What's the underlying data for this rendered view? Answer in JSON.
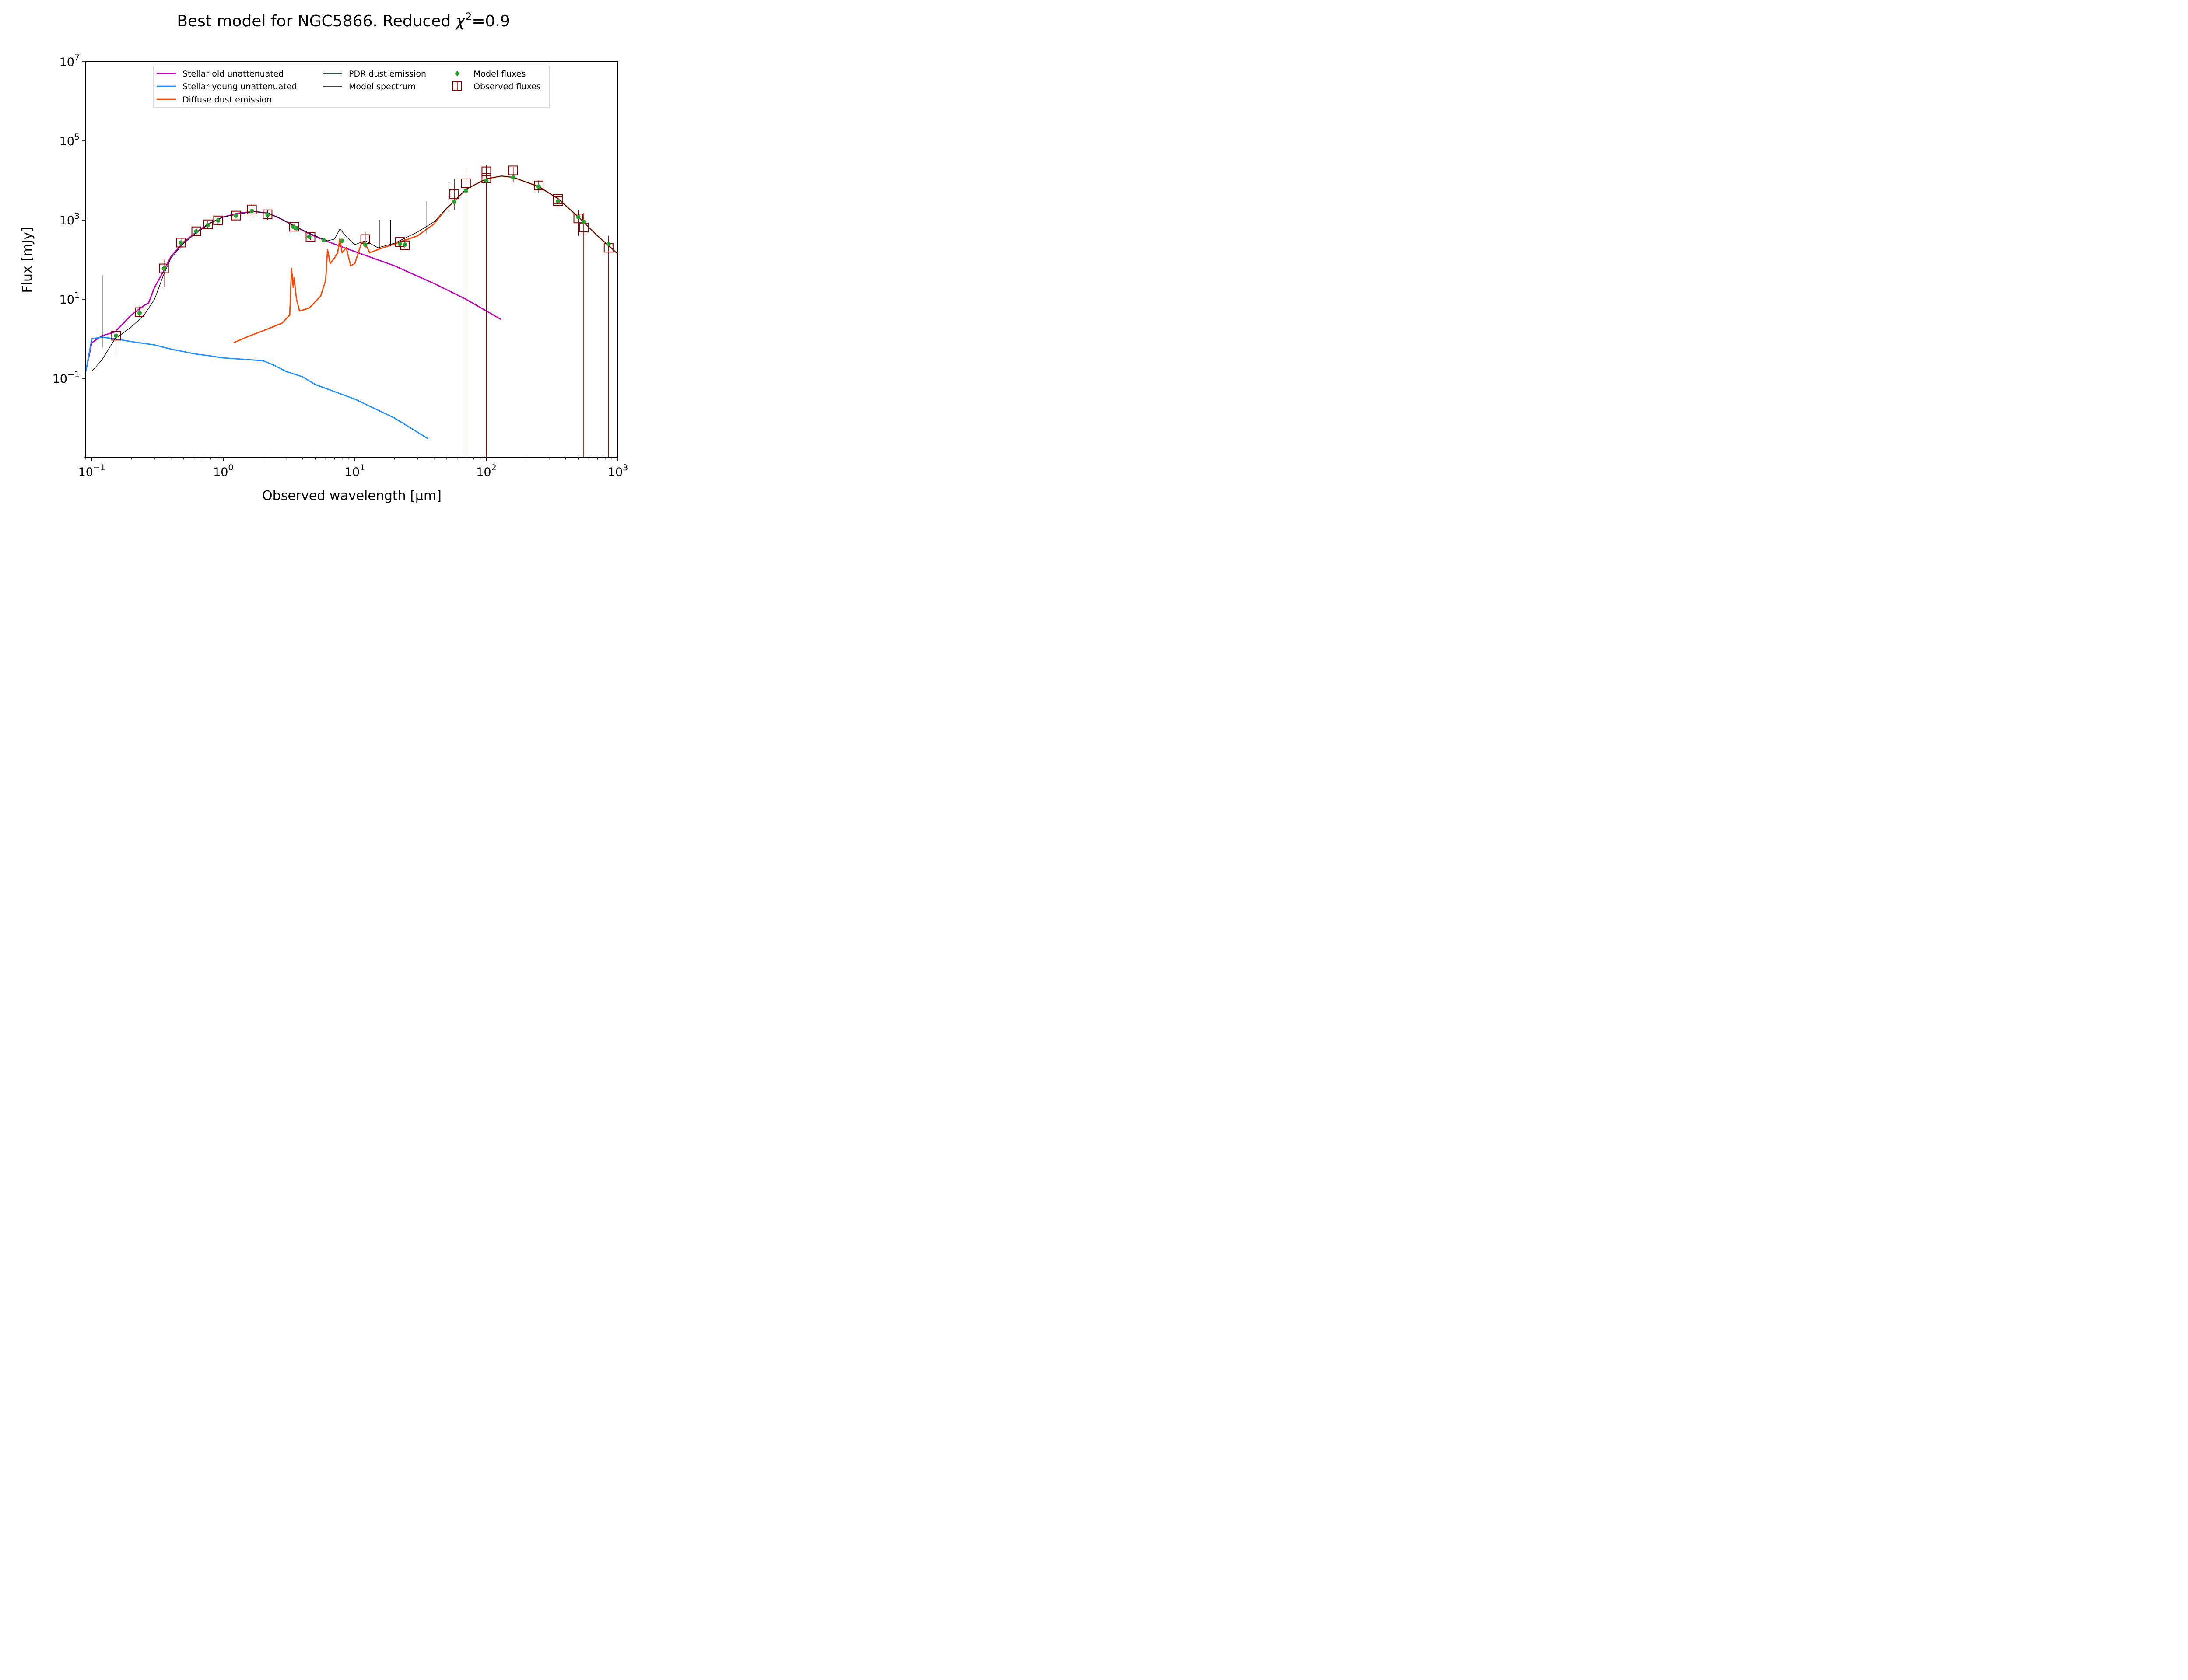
{
  "chart_data": {
    "type": "line",
    "title": "Best model for NGC5866. Reduced χ²=0.9",
    "title_parts": {
      "prefix": "Best model for NGC5866. Reduced ",
      "symbol": "χ",
      "sup": "2",
      "suffix": "=0.9"
    },
    "xlabel": "Observed wavelength [μm]",
    "ylabel": "Flux [mJy]",
    "xscale": "log",
    "yscale": "log",
    "xlim": [
      0.09,
      1000
    ],
    "ylim": [
      0.001,
      10000000
    ],
    "x_ticks": [
      {
        "value": 0.1,
        "base": "10",
        "exp": "−1"
      },
      {
        "value": 1,
        "base": "10",
        "exp": "0"
      },
      {
        "value": 10,
        "base": "10",
        "exp": "1"
      },
      {
        "value": 100,
        "base": "10",
        "exp": "2"
      },
      {
        "value": 1000,
        "base": "10",
        "exp": "3"
      }
    ],
    "y_ticks": [
      {
        "value": 0.1,
        "base": "10",
        "exp": "−1"
      },
      {
        "value": 10,
        "base": "10",
        "exp": "1"
      },
      {
        "value": 1000,
        "base": "10",
        "exp": "3"
      },
      {
        "value": 100000,
        "base": "10",
        "exp": "5"
      },
      {
        "value": 10000000,
        "base": "10",
        "exp": "7"
      }
    ],
    "legend_position": "upper-center",
    "legend": [
      {
        "label": "Stellar old unattenuated",
        "color": "#bf00bf",
        "kind": "line"
      },
      {
        "label": "Stellar young unattenuated",
        "color": "#1e90ff",
        "kind": "line"
      },
      {
        "label": "Diffuse dust emission",
        "color": "#ff4500",
        "kind": "line"
      },
      {
        "label": "PDR dust emission",
        "color": "#2f4f4f",
        "kind": "line"
      },
      {
        "label": "Model spectrum",
        "color": "#000000",
        "kind": "thin-line"
      },
      {
        "label": "Model fluxes",
        "color": "#2ca02c",
        "kind": "dot"
      },
      {
        "label": "Observed fluxes",
        "color": "#800000",
        "kind": "square"
      }
    ],
    "series": [
      {
        "name": "Stellar old unattenuated",
        "color": "#bf00bf",
        "points": [
          [
            0.09,
            0.15
          ],
          [
            0.1,
            0.8
          ],
          [
            0.12,
            1.2
          ],
          [
            0.15,
            1.5
          ],
          [
            0.2,
            4
          ],
          [
            0.25,
            7
          ],
          [
            0.27,
            8
          ],
          [
            0.3,
            20
          ],
          [
            0.35,
            50
          ],
          [
            0.4,
            120
          ],
          [
            0.5,
            280
          ],
          [
            0.6,
            450
          ],
          [
            0.7,
            650
          ],
          [
            0.8,
            850
          ],
          [
            1,
            1200
          ],
          [
            1.3,
            1500
          ],
          [
            1.7,
            1650
          ],
          [
            2.2,
            1500
          ],
          [
            2.7,
            1100
          ],
          [
            3.5,
            700
          ],
          [
            4.5,
            450
          ],
          [
            6,
            300
          ],
          [
            8,
            210
          ],
          [
            10,
            160
          ],
          [
            20,
            70
          ],
          [
            40,
            25
          ],
          [
            70,
            10
          ],
          [
            129,
            3.1
          ]
        ]
      },
      {
        "name": "Stellar young unattenuated",
        "color": "#1e90ff",
        "points": [
          [
            0.09,
            0.15
          ],
          [
            0.1,
            1.0
          ],
          [
            0.12,
            1.1
          ],
          [
            0.15,
            1.0
          ],
          [
            0.2,
            0.85
          ],
          [
            0.3,
            0.7
          ],
          [
            0.4,
            0.55
          ],
          [
            0.6,
            0.42
          ],
          [
            0.8,
            0.37
          ],
          [
            1,
            0.33
          ],
          [
            1.5,
            0.3
          ],
          [
            2,
            0.28
          ],
          [
            2.4,
            0.22
          ],
          [
            3,
            0.15
          ],
          [
            4,
            0.11
          ],
          [
            5,
            0.07
          ],
          [
            10,
            0.03
          ],
          [
            20,
            0.01
          ],
          [
            36,
            0.003
          ]
        ]
      },
      {
        "name": "Diffuse dust emission",
        "color": "#ff4500",
        "points": [
          [
            1.2,
            0.8
          ],
          [
            1.6,
            1.2
          ],
          [
            2.2,
            1.8
          ],
          [
            2.8,
            2.5
          ],
          [
            3.2,
            4
          ],
          [
            3.3,
            60
          ],
          [
            3.4,
            20
          ],
          [
            3.45,
            35
          ],
          [
            3.6,
            10
          ],
          [
            3.8,
            5
          ],
          [
            4.5,
            6
          ],
          [
            5.5,
            12
          ],
          [
            6.0,
            30
          ],
          [
            6.2,
            180
          ],
          [
            6.5,
            80
          ],
          [
            7.0,
            110
          ],
          [
            7.4,
            150
          ],
          [
            7.7,
            350
          ],
          [
            8.0,
            150
          ],
          [
            8.6,
            200
          ],
          [
            9.3,
            70
          ],
          [
            10,
            80
          ],
          [
            11.3,
            280
          ],
          [
            12,
            250
          ],
          [
            13,
            150
          ],
          [
            15,
            180
          ],
          [
            20,
            250
          ],
          [
            30,
            400
          ],
          [
            40,
            800
          ],
          [
            50,
            2000
          ],
          [
            60,
            3500
          ],
          [
            70,
            6000
          ],
          [
            100,
            11000
          ],
          [
            130,
            13000
          ],
          [
            160,
            12000
          ],
          [
            250,
            7000
          ],
          [
            350,
            3500
          ],
          [
            500,
            1200
          ],
          [
            700,
            400
          ],
          [
            1000,
            140
          ]
        ]
      },
      {
        "name": "Model spectrum",
        "color": "#000000",
        "points": [
          [
            0.1,
            0.15
          ],
          [
            0.12,
            0.3
          ],
          [
            0.15,
            1.0
          ],
          [
            0.2,
            2
          ],
          [
            0.25,
            4
          ],
          [
            0.3,
            10
          ],
          [
            0.35,
            40
          ],
          [
            0.4,
            110
          ],
          [
            0.5,
            260
          ],
          [
            0.6,
            430
          ],
          [
            0.8,
            850
          ],
          [
            1,
            1200
          ],
          [
            1.7,
            1650
          ],
          [
            2.2,
            1500
          ],
          [
            2.7,
            1100
          ],
          [
            3.5,
            700
          ],
          [
            4.5,
            470
          ],
          [
            5.5,
            350
          ],
          [
            6.2,
            300
          ],
          [
            7.0,
            330
          ],
          [
            7.7,
            600
          ],
          [
            8.6,
            380
          ],
          [
            10,
            240
          ],
          [
            12,
            300
          ],
          [
            15,
            200
          ],
          [
            20,
            260
          ],
          [
            30,
            500
          ],
          [
            40,
            900
          ],
          [
            50,
            2000
          ],
          [
            70,
            6000
          ],
          [
            100,
            11000
          ],
          [
            130,
            13000
          ],
          [
            160,
            12000
          ],
          [
            250,
            7000
          ],
          [
            350,
            3500
          ],
          [
            500,
            1200
          ],
          [
            700,
            400
          ],
          [
            1000,
            140
          ]
        ]
      }
    ],
    "model_fluxes": {
      "name": "Model fluxes",
      "color": "#2ca02c",
      "points": [
        [
          0.153,
          1.2
        ],
        [
          0.231,
          4.5
        ],
        [
          0.354,
          60
        ],
        [
          0.477,
          270
        ],
        [
          0.623,
          520
        ],
        [
          0.763,
          750
        ],
        [
          0.913,
          980
        ],
        [
          1.25,
          1300
        ],
        [
          1.65,
          1700
        ],
        [
          2.17,
          1350
        ],
        [
          3.4,
          680
        ],
        [
          3.6,
          620
        ],
        [
          4.5,
          380
        ],
        [
          5.8,
          310
        ],
        [
          8.0,
          300
        ],
        [
          12,
          240
        ],
        [
          22,
          250
        ],
        [
          24,
          240
        ],
        [
          57,
          2900
        ],
        [
          70,
          5500
        ],
        [
          100,
          10000
        ],
        [
          160,
          12000
        ],
        [
          250,
          7000
        ],
        [
          350,
          3000
        ],
        [
          500,
          1200
        ],
        [
          550,
          900
        ],
        [
          850,
          250
        ]
      ]
    },
    "observed_fluxes": {
      "name": "Observed fluxes",
      "color": "#800000",
      "points": [
        {
          "x": 0.153,
          "y": 1.2,
          "yerr": [
            0.4,
            2.5
          ]
        },
        {
          "x": 0.231,
          "y": 4.7,
          "yerr": [
            3.5,
            6.5
          ]
        },
        {
          "x": 0.354,
          "y": 60,
          "yerr": [
            20,
            100
          ]
        },
        {
          "x": 0.477,
          "y": 270,
          "yerr": [
            200,
            330
          ]
        },
        {
          "x": 0.623,
          "y": 520,
          "yerr": [
            400,
            650
          ]
        },
        {
          "x": 0.763,
          "y": 780,
          "yerr": [
            600,
            950
          ]
        },
        {
          "x": 0.913,
          "y": 980,
          "yerr": [
            800,
            1200
          ]
        },
        {
          "x": 1.25,
          "y": 1300,
          "yerr": [
            1050,
            1550
          ]
        },
        {
          "x": 1.65,
          "y": 1850,
          "yerr": [
            1100,
            2500
          ]
        },
        {
          "x": 2.17,
          "y": 1400,
          "yerr": [
            1000,
            1800
          ]
        },
        {
          "x": 3.45,
          "y": 680,
          "yerr": [
            560,
            800
          ]
        },
        {
          "x": 4.6,
          "y": 380,
          "yerr": [
            310,
            450
          ]
        },
        {
          "x": 12,
          "y": 330,
          "yerr": [
            200,
            500
          ]
        },
        {
          "x": 22,
          "y": 280,
          "yerr": [
            230,
            340
          ]
        },
        {
          "x": 24,
          "y": 230,
          "yerr": [
            190,
            280
          ]
        },
        {
          "x": 57,
          "y": 4500,
          "yerr": [
            1800,
            8000
          ]
        },
        {
          "x": 70,
          "y": 8500,
          "yerr": [
            0.001,
            20000
          ]
        },
        {
          "x": 100,
          "y": 17000,
          "yerr": [
            0.001,
            25000
          ]
        },
        {
          "x": 100,
          "y": 11500,
          "yerr": [
            0.001,
            20000
          ]
        },
        {
          "x": 160,
          "y": 18000,
          "yerr": [
            9000,
            22000
          ]
        },
        {
          "x": 250,
          "y": 7500,
          "yerr": [
            5000,
            10000
          ]
        },
        {
          "x": 350,
          "y": 3400,
          "yerr": [
            2200,
            4500
          ]
        },
        {
          "x": 350,
          "y": 3000,
          "yerr": [
            2000,
            4200
          ]
        },
        {
          "x": 500,
          "y": 1100,
          "yerr": [
            400,
            1800
          ]
        },
        {
          "x": 550,
          "y": 650,
          "yerr": [
            0.001,
            1500
          ]
        },
        {
          "x": 850,
          "y": 200,
          "yerr": [
            0.001,
            400
          ]
        }
      ]
    },
    "emission_lines": [
      {
        "x": 0.1216,
        "y_low": 0.6,
        "y_high": 40
      },
      {
        "x": 15.5,
        "y_low": 200,
        "y_high": 1000
      },
      {
        "x": 18.7,
        "y_low": 220,
        "y_high": 1000
      },
      {
        "x": 34.8,
        "y_low": 450,
        "y_high": 3000
      },
      {
        "x": 51.8,
        "y_low": 1500,
        "y_high": 9000
      },
      {
        "x": 57,
        "y_low": 2300,
        "y_high": 11000
      }
    ]
  }
}
